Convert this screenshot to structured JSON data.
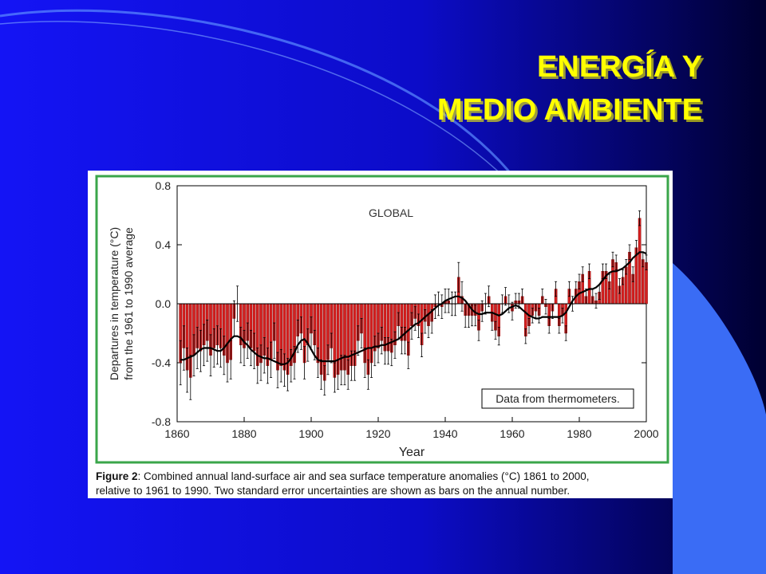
{
  "slide": {
    "title": [
      "ENERGÍA Y",
      "MEDIO AMBIENTE"
    ]
  },
  "chart_data": {
    "type": "bar",
    "annotation": "GLOBAL",
    "note": "Data from thermometers.",
    "ylabel": [
      "Departures in temperature (°C)",
      "from the 1961 to 1990 average"
    ],
    "xlabel": "Year",
    "caption_label": "Figure 2",
    "caption": [
      ": Combined annual land-surface air and sea surface temperature anomalies (°C) 1861 to 2000,",
      "relative to 1961 to 1990. Two standard error uncertainties are shown as bars on the annual number."
    ],
    "color": "#d42020",
    "smooth_color": "#000000",
    "xlim": [
      1860,
      2000
    ],
    "xticks": [
      1860,
      1880,
      1900,
      1920,
      1940,
      1960,
      1980,
      2000
    ],
    "ylim": [
      -0.8,
      0.8
    ],
    "yticks": [
      0.8,
      0.4,
      {
        "value": 0,
        "label": "0.0"
      },
      -0.4,
      -0.8
    ],
    "x": [
      1861,
      1862,
      1863,
      1864,
      1865,
      1866,
      1867,
      1868,
      1869,
      1870,
      1871,
      1872,
      1873,
      1874,
      1875,
      1876,
      1877,
      1878,
      1879,
      1880,
      1881,
      1882,
      1883,
      1884,
      1885,
      1886,
      1887,
      1888,
      1889,
      1890,
      1891,
      1892,
      1893,
      1894,
      1895,
      1896,
      1897,
      1898,
      1899,
      1900,
      1901,
      1902,
      1903,
      1904,
      1905,
      1906,
      1907,
      1908,
      1909,
      1910,
      1911,
      1912,
      1913,
      1914,
      1915,
      1916,
      1917,
      1918,
      1919,
      1920,
      1921,
      1922,
      1923,
      1924,
      1925,
      1926,
      1927,
      1928,
      1929,
      1930,
      1931,
      1932,
      1933,
      1934,
      1935,
      1936,
      1937,
      1938,
      1939,
      1940,
      1941,
      1942,
      1943,
      1944,
      1945,
      1946,
      1947,
      1948,
      1949,
      1950,
      1951,
      1952,
      1953,
      1954,
      1955,
      1956,
      1957,
      1958,
      1959,
      1960,
      1961,
      1962,
      1963,
      1964,
      1965,
      1966,
      1967,
      1968,
      1969,
      1970,
      1971,
      1972,
      1973,
      1974,
      1975,
      1976,
      1977,
      1978,
      1979,
      1980,
      1981,
      1982,
      1983,
      1984,
      1985,
      1986,
      1987,
      1988,
      1989,
      1990,
      1991,
      1992,
      1993,
      1994,
      1995,
      1996,
      1997,
      1998,
      1999,
      2000
    ],
    "values": [
      -0.4,
      -0.3,
      -0.45,
      -0.5,
      -0.35,
      -0.3,
      -0.32,
      -0.28,
      -0.25,
      -0.35,
      -0.3,
      -0.28,
      -0.3,
      -0.35,
      -0.4,
      -0.38,
      -0.1,
      0.0,
      -0.28,
      -0.3,
      -0.25,
      -0.3,
      -0.32,
      -0.42,
      -0.4,
      -0.35,
      -0.42,
      -0.38,
      -0.25,
      -0.45,
      -0.42,
      -0.45,
      -0.48,
      -0.42,
      -0.4,
      -0.22,
      -0.2,
      -0.4,
      -0.28,
      -0.2,
      -0.28,
      -0.4,
      -0.48,
      -0.52,
      -0.38,
      -0.3,
      -0.5,
      -0.48,
      -0.45,
      -0.45,
      -0.48,
      -0.42,
      -0.42,
      -0.25,
      -0.2,
      -0.4,
      -0.48,
      -0.4,
      -0.32,
      -0.3,
      -0.25,
      -0.32,
      -0.32,
      -0.33,
      -0.28,
      -0.15,
      -0.25,
      -0.25,
      -0.35,
      -0.15,
      -0.1,
      -0.15,
      -0.28,
      -0.12,
      -0.15,
      -0.12,
      -0.02,
      0.0,
      -0.02,
      0.02,
      0.02,
      0.0,
      0.0,
      0.18,
      0.05,
      -0.08,
      -0.08,
      -0.08,
      -0.08,
      -0.18,
      -0.05,
      0.0,
      0.05,
      -0.12,
      -0.18,
      -0.22,
      0.0,
      0.05,
      0.0,
      -0.05,
      0.02,
      0.02,
      0.05,
      -0.22,
      -0.15,
      -0.08,
      -0.05,
      -0.08,
      0.05,
      -0.02,
      -0.15,
      -0.05,
      0.1,
      -0.15,
      -0.08,
      -0.2,
      0.1,
      0.0,
      0.1,
      0.15,
      0.2,
      0.05,
      0.22,
      0.05,
      0.02,
      0.08,
      0.22,
      0.22,
      0.15,
      0.3,
      0.28,
      0.12,
      0.18,
      0.25,
      0.35,
      0.2,
      0.38,
      0.58,
      0.3,
      0.28
    ],
    "errors": [
      0.15,
      0.15,
      0.15,
      0.15,
      0.14,
      0.14,
      0.14,
      0.14,
      0.14,
      0.14,
      0.13,
      0.13,
      0.13,
      0.13,
      0.13,
      0.13,
      0.12,
      0.12,
      0.12,
      0.12,
      0.12,
      0.12,
      0.12,
      0.12,
      0.12,
      0.12,
      0.12,
      0.12,
      0.12,
      0.12,
      0.11,
      0.11,
      0.11,
      0.11,
      0.11,
      0.11,
      0.11,
      0.11,
      0.11,
      0.11,
      0.1,
      0.1,
      0.1,
      0.1,
      0.1,
      0.1,
      0.1,
      0.1,
      0.1,
      0.1,
      0.1,
      0.1,
      0.1,
      0.1,
      0.1,
      0.1,
      0.1,
      0.1,
      0.1,
      0.1,
      0.09,
      0.09,
      0.09,
      0.09,
      0.09,
      0.09,
      0.09,
      0.09,
      0.09,
      0.09,
      0.08,
      0.08,
      0.08,
      0.08,
      0.08,
      0.08,
      0.08,
      0.08,
      0.08,
      0.08,
      0.08,
      0.08,
      0.08,
      0.1,
      0.1,
      0.08,
      0.08,
      0.07,
      0.07,
      0.07,
      0.07,
      0.07,
      0.07,
      0.06,
      0.06,
      0.06,
      0.06,
      0.06,
      0.06,
      0.06,
      0.05,
      0.05,
      0.05,
      0.05,
      0.05,
      0.05,
      0.05,
      0.05,
      0.05,
      0.05,
      0.05,
      0.05,
      0.05,
      0.05,
      0.05,
      0.05,
      0.05,
      0.05,
      0.05,
      0.05,
      0.05,
      0.05,
      0.05,
      0.05,
      0.05,
      0.05,
      0.05,
      0.05,
      0.05,
      0.05,
      0.05,
      0.05,
      0.05,
      0.05,
      0.05,
      0.05,
      0.05,
      0.05,
      0.05,
      0.05
    ],
    "smooth": [
      -0.38,
      -0.38,
      -0.37,
      -0.36,
      -0.35,
      -0.33,
      -0.31,
      -0.3,
      -0.3,
      -0.3,
      -0.31,
      -0.32,
      -0.32,
      -0.3,
      -0.27,
      -0.24,
      -0.22,
      -0.22,
      -0.23,
      -0.26,
      -0.28,
      -0.31,
      -0.33,
      -0.35,
      -0.36,
      -0.37,
      -0.37,
      -0.38,
      -0.39,
      -0.4,
      -0.41,
      -0.41,
      -0.4,
      -0.37,
      -0.33,
      -0.28,
      -0.25,
      -0.24,
      -0.27,
      -0.31,
      -0.35,
      -0.38,
      -0.39,
      -0.39,
      -0.39,
      -0.39,
      -0.39,
      -0.38,
      -0.37,
      -0.36,
      -0.36,
      -0.35,
      -0.34,
      -0.33,
      -0.32,
      -0.31,
      -0.3,
      -0.3,
      -0.29,
      -0.29,
      -0.28,
      -0.28,
      -0.27,
      -0.26,
      -0.25,
      -0.24,
      -0.22,
      -0.2,
      -0.18,
      -0.16,
      -0.14,
      -0.13,
      -0.11,
      -0.09,
      -0.07,
      -0.05,
      -0.03,
      -0.01,
      0.0,
      0.02,
      0.03,
      0.04,
      0.05,
      0.05,
      0.04,
      0.02,
      -0.01,
      -0.04,
      -0.06,
      -0.07,
      -0.07,
      -0.06,
      -0.06,
      -0.06,
      -0.07,
      -0.08,
      -0.07,
      -0.05,
      -0.03,
      -0.02,
      -0.01,
      -0.02,
      -0.04,
      -0.06,
      -0.08,
      -0.09,
      -0.1,
      -0.1,
      -0.09,
      -0.09,
      -0.09,
      -0.09,
      -0.09,
      -0.09,
      -0.08,
      -0.06,
      -0.02,
      0.02,
      0.05,
      0.07,
      0.08,
      0.09,
      0.1,
      0.1,
      0.11,
      0.13,
      0.16,
      0.19,
      0.21,
      0.22,
      0.22,
      0.23,
      0.24,
      0.26,
      0.28,
      0.31,
      0.33,
      0.35,
      0.35,
      0.34
    ]
  }
}
